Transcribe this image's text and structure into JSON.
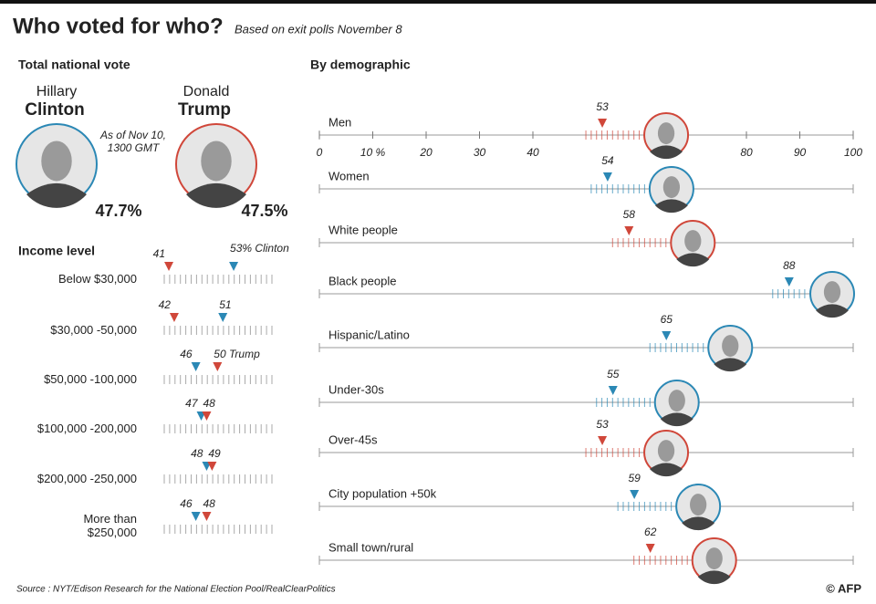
{
  "header": {
    "title": "Who voted for who?",
    "subtitle": "Based on exit polls November 8"
  },
  "national": {
    "title": "Total national vote",
    "note": "As of Nov 10, 1300 GMT",
    "candidates": [
      {
        "first_name": "Hillary",
        "last_name": "Clinton",
        "color": "#2b88b5",
        "value": 47.7,
        "value_label": "47.7%"
      },
      {
        "first_name": "Donald",
        "last_name": "Trump",
        "color": "#d0473a",
        "value": 47.5,
        "value_label": "47.5%"
      }
    ]
  },
  "chart_data": [
    {
      "type": "marker",
      "title": "Income level",
      "categories": [
        "Below $30,000",
        "$30,000 -50,000",
        "$50,000 -100,000",
        "$100,000 -200,000",
        "$200,000 -250,000",
        "More than $250,000"
      ],
      "series": [
        {
          "color": "#2b88b5",
          "values": [
            53,
            51,
            46,
            47,
            48,
            46
          ],
          "value_labels": [
            "53% Clinton",
            "51",
            "46",
            "47",
            "48",
            "46"
          ]
        },
        {
          "color": "#d0473a",
          "values": [
            41,
            42,
            50,
            48,
            49,
            48
          ],
          "value_labels": [
            "41",
            "42",
            "50 Trump",
            "48",
            "49",
            "48"
          ]
        }
      ]
    },
    {
      "type": "marker",
      "title": "By demographic",
      "categories": [
        "Men",
        "Women",
        "White people",
        "Black people",
        "Hispanic/Latino",
        "Under-30s",
        "Over-45s",
        "City population +50k",
        "Small town/rural"
      ],
      "values": [
        53,
        54,
        58,
        88,
        65,
        55,
        53,
        59,
        62
      ],
      "colors": [
        "#d0473a",
        "#2b88b5",
        "#d0473a",
        "#2b88b5",
        "#2b88b5",
        "#2b88b5",
        "#d0473a",
        "#2b88b5",
        "#d0473a"
      ],
      "xlim": [
        0,
        100
      ],
      "xticks": [
        0,
        {
          "value": 10,
          "label": "10 %"
        },
        20,
        30,
        40,
        80,
        90,
        100
      ]
    }
  ],
  "footer": {
    "source": "Source : NYT/Edison Research for the National Election Pool/RealClearPolitics",
    "credit": "© AFP"
  }
}
